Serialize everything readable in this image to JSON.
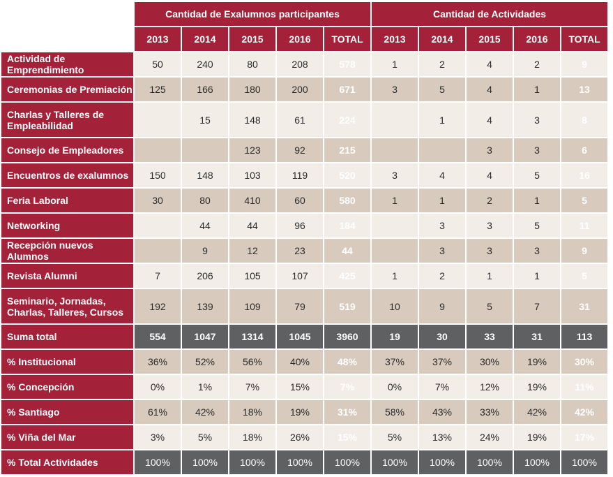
{
  "header": {
    "group1": "Cantidad de Exalumnos participantes",
    "group2": "Cantidad de Actividades",
    "years1": [
      "2013",
      "2014",
      "2015",
      "2016",
      "TOTAL"
    ],
    "years2": [
      "2013",
      "2014",
      "2015",
      "2016",
      "TOTAL"
    ]
  },
  "rows": [
    {
      "label": "Actividad de Emprendimiento",
      "v": [
        "50",
        "240",
        "80",
        "208",
        "578",
        "1",
        "2",
        "4",
        "2",
        "9"
      ]
    },
    {
      "label": "Ceremonias de Premiación",
      "v": [
        "125",
        "166",
        "180",
        "200",
        "671",
        "3",
        "5",
        "4",
        "1",
        "13"
      ]
    },
    {
      "label": "Charlas y Talleres de Empleabilidad",
      "v": [
        "",
        "15",
        "148",
        "61",
        "224",
        "",
        "1",
        "4",
        "3",
        "8"
      ]
    },
    {
      "label": "Consejo de Empleadores",
      "v": [
        "",
        "",
        "123",
        "92",
        "215",
        "",
        "",
        "3",
        "3",
        "6"
      ]
    },
    {
      "label": "Encuentros de exalumnos",
      "v": [
        "150",
        "148",
        "103",
        "119",
        "520",
        "3",
        "4",
        "4",
        "5",
        "16"
      ]
    },
    {
      "label": "Feria Laboral",
      "v": [
        "30",
        "80",
        "410",
        "60",
        "580",
        "1",
        "1",
        "2",
        "1",
        "5"
      ]
    },
    {
      "label": "Networking",
      "v": [
        "",
        "44",
        "44",
        "96",
        "184",
        "",
        "3",
        "3",
        "5",
        "11"
      ]
    },
    {
      "label": "Recepción nuevos Alumnos",
      "v": [
        "",
        "9",
        "12",
        "23",
        "44",
        "",
        "3",
        "3",
        "3",
        "9"
      ]
    },
    {
      "label": "Revista Alumni",
      "v": [
        "7",
        "206",
        "105",
        "107",
        "425",
        "1",
        "2",
        "1",
        "1",
        "5"
      ]
    },
    {
      "label": "Seminario, Jornadas, Charlas, Talleres, Cursos",
      "v": [
        "192",
        "139",
        "109",
        "79",
        "519",
        "10",
        "9",
        "5",
        "7",
        "31"
      ]
    },
    {
      "label": "Suma total",
      "v": [
        "554",
        "1047",
        "1314",
        "1045",
        "3960",
        "19",
        "30",
        "33",
        "31",
        "113"
      ]
    },
    {
      "label": "% Institucional",
      "v": [
        "36%",
        "52%",
        "56%",
        "40%",
        "48%",
        "37%",
        "37%",
        "30%",
        "19%",
        "30%"
      ]
    },
    {
      "label": "% Concepción",
      "v": [
        "0%",
        "1%",
        "7%",
        "15%",
        "7%",
        "0%",
        "7%",
        "12%",
        "19%",
        "11%"
      ]
    },
    {
      "label": "% Santiago",
      "v": [
        "61%",
        "42%",
        "18%",
        "19%",
        "31%",
        "58%",
        "43%",
        "33%",
        "42%",
        "42%"
      ]
    },
    {
      "label": "% Viña del Mar",
      "v": [
        "3%",
        "5%",
        "18%",
        "26%",
        "15%",
        "5%",
        "13%",
        "24%",
        "19%",
        "17%"
      ]
    },
    {
      "label": "% Total Actividades",
      "v": [
        "100%",
        "100%",
        "100%",
        "100%",
        "100%",
        "100%",
        "100%",
        "100%",
        "100%",
        "100%"
      ]
    }
  ],
  "colors": {
    "header_red": "#a3223a",
    "total_gray": "#5f6062",
    "row_light": "#f2ede6",
    "row_dark": "#d8cbbd"
  }
}
